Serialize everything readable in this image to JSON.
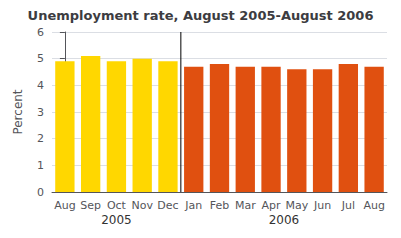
{
  "chart_data": {
    "type": "bar",
    "title": "Unemployment rate, August 2005-August 2006",
    "ylabel": "Percent",
    "categories": [
      "Aug",
      "Sep",
      "Oct",
      "Nov",
      "Dec",
      "Jan",
      "Feb",
      "Mar",
      "Apr",
      "May",
      "Jun",
      "Jul",
      "Aug"
    ],
    "values": [
      4.9,
      5.1,
      4.9,
      5.0,
      4.9,
      4.7,
      4.8,
      4.7,
      4.7,
      4.6,
      4.6,
      4.8,
      4.7
    ],
    "colors": [
      "#FFD700",
      "#FFD700",
      "#FFD700",
      "#FFD700",
      "#FFD700",
      "#E05010",
      "#E05010",
      "#E05010",
      "#E05010",
      "#E05010",
      "#E05010",
      "#E05010",
      "#E05010"
    ],
    "ylim": [
      0,
      6
    ],
    "yticks": [
      0,
      1,
      2,
      3,
      4,
      5,
      6
    ],
    "grid": true,
    "annotations": [
      {
        "text": "2005",
        "x": 2.0
      },
      {
        "text": "2006",
        "x": 8.5
      },
      {
        "type": "vline",
        "x": 4.5,
        "color": "#000000"
      }
    ]
  }
}
